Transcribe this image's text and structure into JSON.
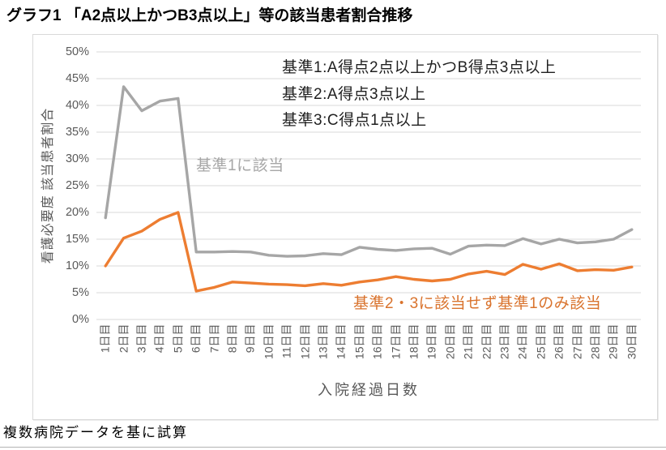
{
  "page": {
    "title": "グラフ1 「A2点以上かつB3点以上」等の該当患者割合推移",
    "footer": "複数病院データを基に試算"
  },
  "chart_data": {
    "type": "line",
    "xlabel": "入院経過日数",
    "ylabel": "看護必要度 該当患者割合",
    "ylim": [
      0,
      50
    ],
    "ytick_step_percent": 5,
    "ytick_labels": [
      "50%",
      "45%",
      "40%",
      "35%",
      "30%",
      "25%",
      "20%",
      "15%",
      "10%",
      "5%",
      "0%"
    ],
    "grid": "horizontal",
    "gridline_color": "#d9d9d9",
    "legend_position": "none",
    "categories": [
      "1日目",
      "2日目",
      "3日目",
      "4日目",
      "5日目",
      "6日目",
      "7日目",
      "8日目",
      "9日目",
      "10日目",
      "11日目",
      "12日目",
      "13日目",
      "14日目",
      "15日目",
      "16日目",
      "17日目",
      "18日目",
      "19日目",
      "20日目",
      "21日目",
      "22日目",
      "23日目",
      "24日目",
      "25日目",
      "26日目",
      "27日目",
      "28日目",
      "29日目",
      "30日目"
    ],
    "series": [
      {
        "name": "基準1に該当",
        "color": "#A6A6A6",
        "values": [
          19.0,
          43.5,
          39.0,
          40.8,
          41.3,
          12.6,
          12.6,
          12.7,
          12.6,
          12.0,
          11.8,
          11.9,
          12.3,
          12.1,
          13.5,
          13.1,
          12.9,
          13.2,
          13.3,
          12.2,
          13.7,
          13.9,
          13.8,
          15.1,
          14.1,
          15.0,
          14.3,
          14.5,
          15.0,
          16.8
        ]
      },
      {
        "name": "基準2・3に該当せず基準1のみ該当",
        "color": "#ED7D31",
        "values": [
          10.0,
          15.2,
          16.5,
          18.7,
          20.0,
          5.3,
          6.0,
          7.0,
          6.8,
          6.6,
          6.5,
          6.3,
          6.7,
          6.4,
          7.0,
          7.4,
          8.0,
          7.5,
          7.2,
          7.5,
          8.5,
          9.0,
          8.4,
          10.3,
          9.4,
          10.4,
          9.1,
          9.3,
          9.2,
          9.8
        ]
      }
    ],
    "annotations": {
      "kijun1": "基準1:A得点2点以上かつB得点3点以上",
      "kijun2": "基準2:A得点3点以上",
      "kijun3": "基準3:C得点1点以上"
    }
  }
}
